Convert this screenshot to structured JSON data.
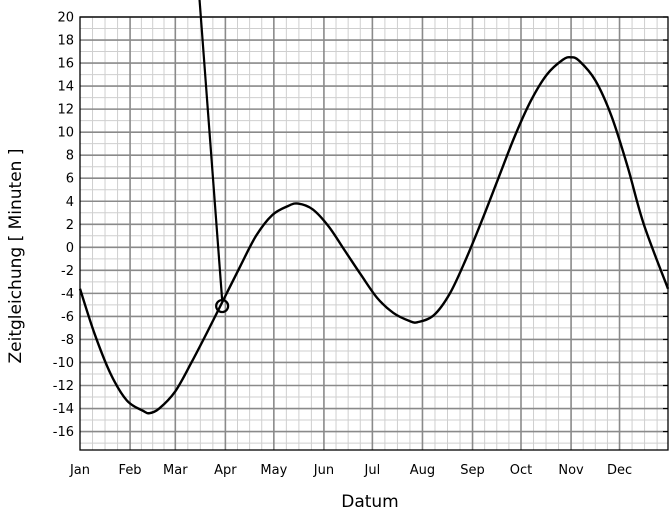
{
  "chart_data": {
    "type": "line",
    "title": "",
    "xlabel": "Datum",
    "ylabel": "Zeitgleichung [ Minuten ]",
    "x_tick_labels": [
      "Jan",
      "Feb",
      "Mar",
      "Apr",
      "May",
      "Jun",
      "Jul",
      "Aug",
      "Sep",
      "Oct",
      "Nov",
      "Dec"
    ],
    "x_tick_days": [
      1,
      32,
      60,
      91,
      121,
      152,
      182,
      213,
      244,
      274,
      305,
      335
    ],
    "xlim": [
      1,
      365
    ],
    "y_ticks": [
      20,
      18,
      16,
      14,
      12,
      10,
      8,
      6,
      4,
      2,
      0,
      -2,
      -4,
      -6,
      -8,
      -10,
      -12,
      -14,
      -16
    ],
    "y_tick_labels": [
      "20",
      "18",
      "16",
      "14",
      "12",
      "10",
      "8",
      "6",
      "4",
      "2",
      "0",
      "-2",
      "-4",
      "-6",
      "-8",
      "-10",
      "-12",
      "-14",
      "-16"
    ],
    "ylim": [
      -17.6,
      20
    ],
    "grid": true,
    "series": [
      {
        "x_unit": "day of year",
        "points": [
          [
            1,
            -3.6
          ],
          [
            10,
            -7.5
          ],
          [
            20,
            -11.0
          ],
          [
            30,
            -13.3
          ],
          [
            40,
            -14.2
          ],
          [
            44,
            -14.4
          ],
          [
            50,
            -14.0
          ],
          [
            60,
            -12.5
          ],
          [
            70,
            -10.0
          ],
          [
            80,
            -7.3
          ],
          [
            90,
            -4.5
          ],
          [
            100,
            -1.7
          ],
          [
            110,
            1.0
          ],
          [
            120,
            2.8
          ],
          [
            130,
            3.6
          ],
          [
            136,
            3.8
          ],
          [
            145,
            3.3
          ],
          [
            155,
            1.8
          ],
          [
            165,
            -0.3
          ],
          [
            175,
            -2.4
          ],
          [
            185,
            -4.4
          ],
          [
            195,
            -5.7
          ],
          [
            205,
            -6.4
          ],
          [
            210,
            -6.5
          ],
          [
            220,
            -5.9
          ],
          [
            230,
            -4.0
          ],
          [
            240,
            -1.0
          ],
          [
            250,
            2.4
          ],
          [
            260,
            6.0
          ],
          [
            270,
            9.6
          ],
          [
            280,
            12.7
          ],
          [
            290,
            15.0
          ],
          [
            300,
            16.3
          ],
          [
            305,
            16.5
          ],
          [
            310,
            16.2
          ],
          [
            320,
            14.5
          ],
          [
            330,
            11.4
          ],
          [
            340,
            7.0
          ],
          [
            350,
            2.0
          ],
          [
            365,
            -3.6
          ]
        ]
      }
    ],
    "annotations": [
      {
        "type": "marker",
        "shape": "open-circle",
        "x_day": 89,
        "y": -5.1,
        "pointer_to": {
          "x_day": 75,
          "y": 21.5
        }
      }
    ]
  }
}
